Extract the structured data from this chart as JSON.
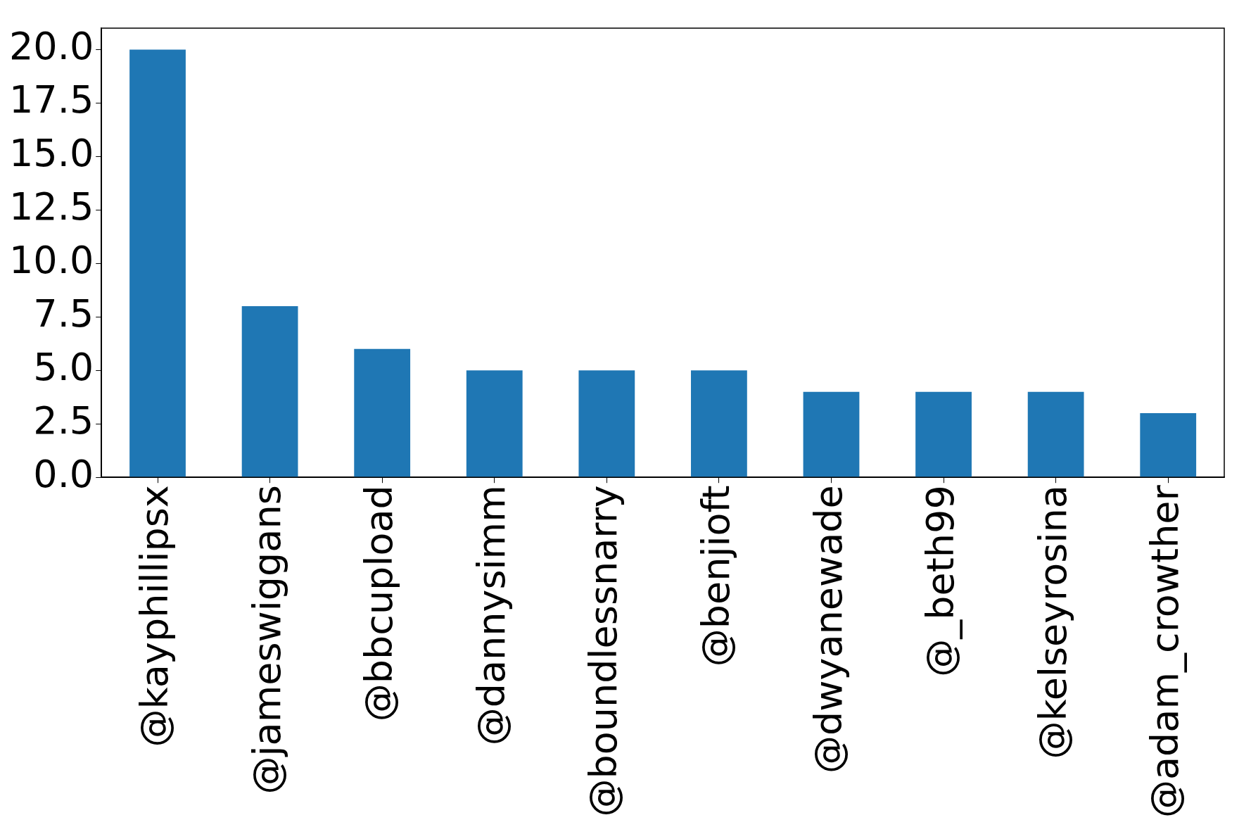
{
  "chart_data": {
    "type": "bar",
    "categories": [
      "@kayphillipsx",
      "@jameswiggans",
      "@bbcupload",
      "@dannysimm",
      "@boundlessnarry",
      "@benjioft",
      "@dwyanewade",
      "@_beth99",
      "@kelseyrosina",
      "@adam_crowther"
    ],
    "values": [
      20,
      8,
      6,
      5,
      5,
      5,
      4,
      4,
      4,
      3
    ],
    "color": "#1f77b4",
    "ylim": [
      0,
      21
    ],
    "yticks": [
      {
        "value": 0,
        "label": "0.0"
      },
      {
        "value": 2.5,
        "label": "2.5"
      },
      {
        "value": 5,
        "label": "5.0"
      },
      {
        "value": 7.5,
        "label": "7.5"
      },
      {
        "value": 10,
        "label": "10.0"
      },
      {
        "value": 12.5,
        "label": "12.5"
      },
      {
        "value": 15,
        "label": "15.0"
      },
      {
        "value": 17.5,
        "label": "17.5"
      },
      {
        "value": 20,
        "label": "20.0"
      }
    ],
    "grid": false,
    "legend": false
  }
}
